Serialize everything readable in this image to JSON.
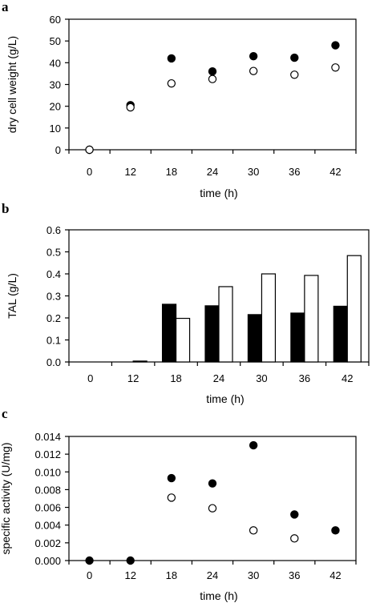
{
  "chart_data": [
    {
      "panel": "a",
      "type": "scatter",
      "categories": [
        "0",
        "12",
        "18",
        "24",
        "30",
        "36",
        "42"
      ],
      "xlabel": "time (h)",
      "ylabel": "dry cell weight (g/L)",
      "ylim": [
        0,
        60
      ],
      "yticks": [
        "0",
        "10",
        "20",
        "30",
        "40",
        "50",
        "60"
      ],
      "grid": false,
      "series": [
        {
          "marker": "filled-circle",
          "values": [
            0,
            20.5,
            42,
            36,
            43,
            42.3,
            48
          ]
        },
        {
          "marker": "open-circle",
          "values": [
            0,
            19.5,
            30.5,
            32.5,
            36.2,
            34.5,
            37.8
          ]
        }
      ]
    },
    {
      "panel": "b",
      "type": "bar",
      "categories": [
        "0",
        "12",
        "18",
        "24",
        "30",
        "36",
        "42"
      ],
      "xlabel": "time (h)",
      "ylabel": "TAL (g/L)",
      "ylim": [
        0,
        0.6
      ],
      "yticks": [
        "0.0",
        "0.1",
        "0.2",
        "0.3",
        "0.4",
        "0.5",
        "0.6"
      ],
      "grid": false,
      "series": [
        {
          "fill": "solid-black",
          "values": [
            0,
            0,
            0.262,
            0.255,
            0.215,
            0.222,
            0.253
          ]
        },
        {
          "fill": "white",
          "values": [
            0,
            0.004,
            0.198,
            0.342,
            0.4,
            0.393,
            0.483
          ]
        }
      ]
    },
    {
      "panel": "c",
      "type": "scatter",
      "categories": [
        "0",
        "12",
        "18",
        "24",
        "30",
        "36",
        "42"
      ],
      "xlabel": "time (h)",
      "ylabel": "specific activity (U/mg)",
      "ylim": [
        0,
        0.014
      ],
      "yticks": [
        "0.000",
        "0.002",
        "0.004",
        "0.006",
        "0.008",
        "0.010",
        "0.012",
        "0.014"
      ],
      "grid": false,
      "series": [
        {
          "marker": "filled-circle",
          "values": [
            0,
            0,
            0.0093,
            0.0087,
            0.013,
            0.0052,
            0.0034
          ]
        },
        {
          "marker": "open-circle",
          "values": [
            null,
            null,
            0.0071,
            0.0059,
            0.0034,
            0.0025,
            null
          ]
        }
      ]
    }
  ]
}
